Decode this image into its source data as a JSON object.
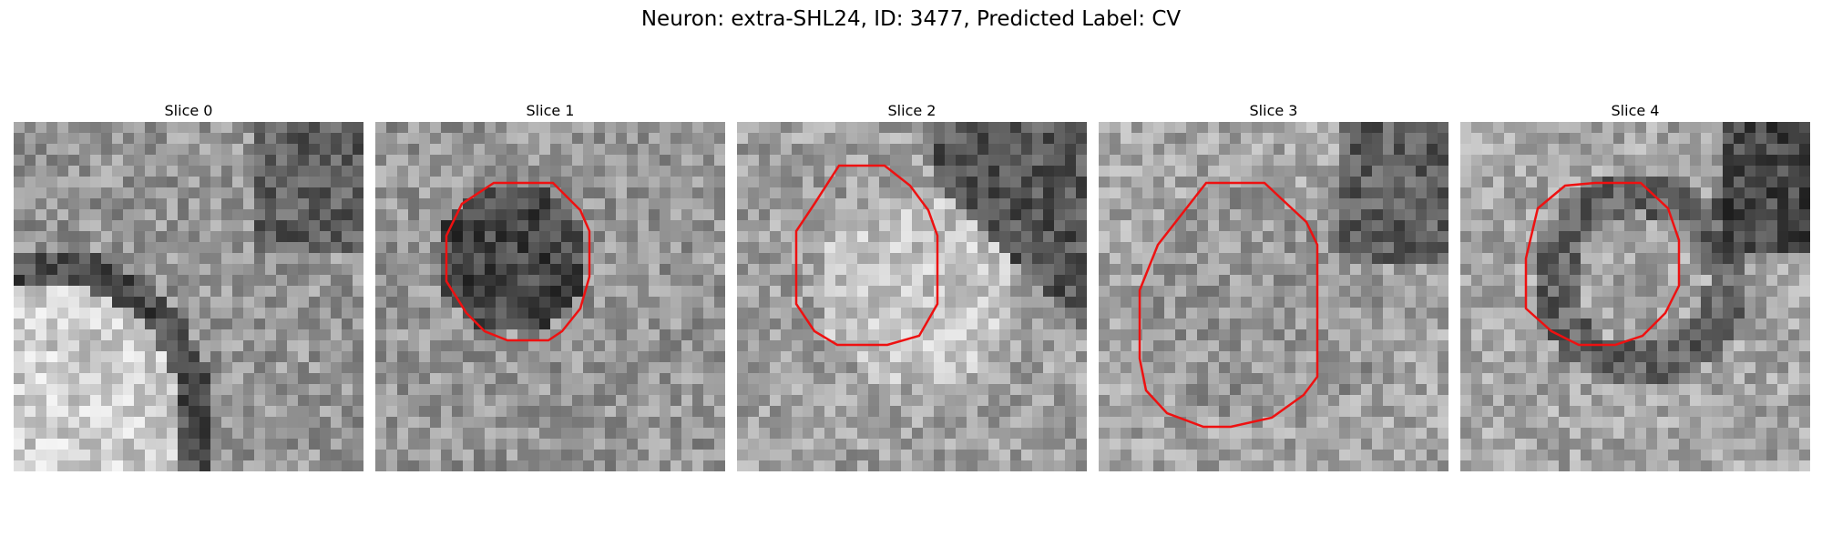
{
  "figure": {
    "title": "Neuron: extra-SHL24, ID: 3477, Predicted Label: CV"
  },
  "panels": [
    {
      "title": "Slice 0",
      "has_outline": false
    },
    {
      "title": "Slice 1",
      "has_outline": true
    },
    {
      "title": "Slice 2",
      "has_outline": true
    },
    {
      "title": "Slice 3",
      "has_outline": true
    },
    {
      "title": "Slice 4",
      "has_outline": true
    }
  ],
  "colors": {
    "outline": "#ee1111",
    "background": "#ffffff"
  }
}
